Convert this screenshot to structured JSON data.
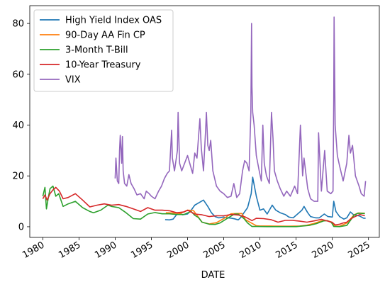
{
  "chart_data": {
    "type": "line",
    "title": "",
    "xlabel": "DATE",
    "ylabel": "",
    "xlim": [
      1978.2,
      2026.5
    ],
    "ylim": [
      -4.2,
      87.0
    ],
    "x_ticks": [
      1980,
      1985,
      1990,
      1995,
      2000,
      2005,
      2010,
      2015,
      2020,
      2025
    ],
    "x_tick_labels": [
      "1980",
      "1985",
      "1990",
      "1995",
      "2000",
      "2005",
      "2010",
      "2015",
      "2020",
      "2025"
    ],
    "y_ticks": [
      0,
      20,
      40,
      60,
      80
    ],
    "y_tick_labels": [
      "0",
      "20",
      "40",
      "60",
      "80"
    ],
    "grid": false,
    "legend_position": "upper-left",
    "series": [
      {
        "name": "High Yield Index OAS",
        "color": "#1f77b4",
        "x": [
          1996.9,
          1997.5,
          1998.0,
          1998.7,
          1999.3,
          2000.0,
          2000.5,
          2001.0,
          2001.6,
          2002.2,
          2002.8,
          2003.3,
          2003.8,
          2004.3,
          2005.0,
          2005.5,
          2006.0,
          2006.5,
          2007.0,
          2007.3,
          2007.8,
          2008.3,
          2008.8,
          2009.0,
          2009.5,
          2010.0,
          2010.5,
          2011.0,
          2011.7,
          2012.2,
          2012.8,
          2013.5,
          2014.0,
          2014.6,
          2015.2,
          2015.8,
          2016.1,
          2016.6,
          2017.0,
          2017.7,
          2018.2,
          2018.9,
          2019.4,
          2020.0,
          2020.2,
          2020.5,
          2021.0,
          2021.6,
          2022.0,
          2022.5,
          2022.9,
          2023.3,
          2023.8,
          2024.3,
          2024.6
        ],
        "values": [
          2.8,
          2.7,
          3.0,
          5.5,
          4.7,
          5.0,
          6.5,
          8.5,
          9.5,
          10.5,
          8.0,
          5.5,
          4.0,
          3.5,
          3.8,
          3.5,
          3.4,
          3.1,
          2.7,
          3.5,
          5.5,
          7.5,
          13.0,
          19.5,
          12.0,
          6.5,
          7.0,
          5.0,
          8.5,
          6.5,
          5.5,
          4.8,
          3.8,
          3.5,
          5.0,
          6.5,
          8.0,
          5.5,
          4.0,
          3.5,
          3.5,
          5.0,
          4.0,
          3.8,
          10.0,
          6.0,
          4.0,
          3.0,
          3.5,
          5.8,
          4.8,
          4.5,
          4.2,
          3.4,
          3.3
        ]
      },
      {
        "name": "90-Day AA Fin CP",
        "color": "#ff7f0e",
        "x": [
          1997.0,
          1998.0,
          1999.0,
          2000.0,
          2000.8,
          2001.5,
          2002.0,
          2003.0,
          2004.0,
          2005.0,
          2006.0,
          2006.8,
          2007.5,
          2008.0,
          2008.8,
          2009.5,
          2010.0,
          2012.0,
          2014.0,
          2015.5,
          2016.5,
          2017.5,
          2018.5,
          2019.3,
          2020.0,
          2020.3,
          2021.0,
          2022.0,
          2022.5,
          2023.0,
          2023.6,
          2024.5
        ],
        "values": [
          5.5,
          5.4,
          5.2,
          6.5,
          6.4,
          3.8,
          1.8,
          1.1,
          1.6,
          3.2,
          5.1,
          5.2,
          5.2,
          2.8,
          1.5,
          0.4,
          0.3,
          0.25,
          0.2,
          0.3,
          0.6,
          1.3,
          2.3,
          2.4,
          1.7,
          0.3,
          0.15,
          1.5,
          3.0,
          4.7,
          5.4,
          5.3
        ]
      },
      {
        "name": "3-Month T-Bill",
        "color": "#2ca02c",
        "x": [
          1980.0,
          1980.3,
          1980.5,
          1980.8,
          1981.0,
          1981.4,
          1981.8,
          1982.2,
          1982.8,
          1983.5,
          1984.5,
          1985.5,
          1986.5,
          1987.0,
          1988.0,
          1989.0,
          1989.5,
          1990.5,
          1991.5,
          1992.5,
          1993.5,
          1994.5,
          1995.5,
          1996.5,
          1997.5,
          1998.5,
          1999.5,
          2000.5,
          2001.0,
          2001.5,
          2002.0,
          2003.0,
          2003.8,
          2004.5,
          2005.5,
          2006.5,
          2007.0,
          2007.8,
          2008.3,
          2008.9,
          2009.5,
          2011.0,
          2013.0,
          2015.0,
          2015.9,
          2016.8,
          2017.8,
          2018.8,
          2019.3,
          2019.9,
          2020.2,
          2021.0,
          2022.0,
          2022.5,
          2023.0,
          2023.5,
          2024.5
        ],
        "values": [
          12.0,
          15.5,
          7.0,
          12.0,
          15.0,
          16.0,
          12.0,
          13.0,
          8.0,
          9.0,
          10.0,
          7.5,
          6.0,
          5.5,
          6.5,
          8.5,
          8.0,
          7.5,
          5.5,
          3.2,
          3.0,
          5.0,
          5.6,
          5.1,
          5.1,
          4.8,
          4.8,
          6.0,
          4.5,
          3.6,
          1.8,
          1.0,
          0.9,
          1.5,
          3.3,
          5.0,
          5.0,
          3.2,
          1.5,
          0.1,
          0.1,
          0.05,
          0.05,
          0.05,
          0.3,
          0.5,
          1.2,
          2.3,
          2.4,
          1.6,
          0.1,
          0.05,
          0.5,
          2.5,
          4.5,
          5.3,
          5.2
        ]
      },
      {
        "name": "10-Year Treasury",
        "color": "#d62728",
        "x": [
          1980.0,
          1980.3,
          1980.6,
          1981.0,
          1981.4,
          1981.8,
          1982.3,
          1982.8,
          1983.5,
          1984.5,
          1985.5,
          1986.5,
          1987.5,
          1988.5,
          1989.5,
          1990.5,
          1991.5,
          1992.5,
          1993.5,
          1994.5,
          1995.5,
          1996.5,
          1997.5,
          1998.5,
          1999.5,
          2000.0,
          2001.0,
          2002.0,
          2003.0,
          2004.0,
          2005.0,
          2006.0,
          2007.0,
          2008.0,
          2008.9,
          2009.5,
          2010.5,
          2011.5,
          2012.5,
          2013.5,
          2014.5,
          2015.5,
          2016.5,
          2017.5,
          2018.5,
          2019.5,
          2020.0,
          2020.4,
          2021.0,
          2021.5,
          2022.0,
          2022.5,
          2023.0,
          2023.8,
          2024.5
        ],
        "values": [
          11.0,
          12.5,
          10.5,
          13.0,
          14.5,
          15.5,
          14.0,
          11.0,
          11.5,
          13.0,
          10.5,
          7.8,
          8.5,
          9.0,
          8.5,
          8.7,
          8.0,
          7.0,
          6.0,
          7.5,
          6.5,
          6.5,
          6.3,
          5.5,
          5.8,
          6.5,
          5.0,
          4.7,
          4.0,
          4.3,
          4.3,
          4.8,
          4.6,
          3.8,
          2.4,
          3.3,
          3.2,
          2.8,
          1.8,
          2.5,
          2.5,
          2.2,
          1.8,
          2.3,
          2.9,
          2.1,
          1.7,
          0.7,
          1.0,
          1.5,
          1.8,
          3.0,
          3.8,
          4.8,
          4.3
        ]
      },
      {
        "name": "VIX",
        "color": "#9467bd",
        "x": [
          1990.0,
          1990.1,
          1990.3,
          1990.5,
          1990.6,
          1990.7,
          1990.9,
          1991.0,
          1991.1,
          1991.3,
          1991.6,
          1991.9,
          1992.2,
          1992.6,
          1993.0,
          1993.5,
          1994.0,
          1994.3,
          1994.7,
          1995.0,
          1995.5,
          1996.0,
          1996.4,
          1996.8,
          1997.2,
          1997.5,
          1997.8,
          1997.9,
          1998.2,
          1998.6,
          1998.7,
          1998.9,
          1999.2,
          1999.6,
          2000.0,
          2000.4,
          2000.7,
          2001.0,
          2001.3,
          2001.7,
          2001.9,
          2002.2,
          2002.5,
          2002.6,
          2002.8,
          2003.0,
          2003.2,
          2003.5,
          2004.0,
          2004.5,
          2005.0,
          2005.5,
          2006.0,
          2006.4,
          2006.8,
          2007.2,
          2007.6,
          2007.9,
          2008.2,
          2008.5,
          2008.75,
          2008.85,
          2008.9,
          2009.0,
          2009.2,
          2009.5,
          2009.9,
          2010.2,
          2010.4,
          2010.6,
          2010.9,
          2011.3,
          2011.6,
          2011.8,
          2012.0,
          2012.4,
          2012.8,
          2013.3,
          2013.7,
          2014.2,
          2014.8,
          2015.2,
          2015.6,
          2015.9,
          2016.1,
          2016.6,
          2017.0,
          2017.5,
          2018.0,
          2018.1,
          2018.5,
          2018.95,
          2019.3,
          2019.8,
          2020.1,
          2020.2,
          2020.25,
          2020.4,
          2020.7,
          2021.0,
          2021.5,
          2022.0,
          2022.3,
          2022.5,
          2022.8,
          2023.2,
          2023.7,
          2024.0,
          2024.4,
          2024.6
        ],
        "values": [
          19.0,
          27.0,
          18.0,
          17.0,
          30.0,
          36.0,
          25.0,
          35.5,
          22.0,
          17.0,
          16.0,
          20.5,
          17.0,
          15.0,
          12.5,
          13.0,
          11.0,
          14.0,
          13.0,
          12.0,
          11.0,
          14.0,
          16.0,
          19.0,
          21.0,
          22.0,
          38.0,
          27.0,
          22.0,
          30.0,
          45.0,
          25.0,
          22.0,
          25.0,
          28.0,
          24.0,
          21.0,
          29.0,
          27.0,
          42.5,
          31.0,
          22.0,
          38.0,
          45.0,
          32.0,
          30.0,
          34.0,
          22.0,
          16.0,
          14.0,
          13.0,
          11.5,
          12.0,
          17.0,
          11.5,
          13.0,
          22.0,
          26.0,
          25.0,
          22.0,
          45.0,
          80.0,
          55.0,
          45.0,
          40.0,
          28.0,
          22.0,
          18.0,
          40.0,
          25.0,
          20.0,
          17.0,
          45.0,
          35.0,
          22.0,
          18.0,
          15.0,
          12.0,
          14.0,
          12.0,
          16.0,
          13.0,
          40.0,
          20.0,
          27.0,
          15.0,
          11.0,
          10.0,
          10.0,
          37.0,
          14.0,
          30.0,
          14.0,
          13.0,
          14.0,
          50.0,
          82.5,
          40.0,
          28.0,
          24.0,
          18.0,
          25.0,
          36.0,
          29.0,
          32.0,
          20.0,
          16.0,
          13.0,
          12.0,
          18.0
        ]
      }
    ]
  }
}
